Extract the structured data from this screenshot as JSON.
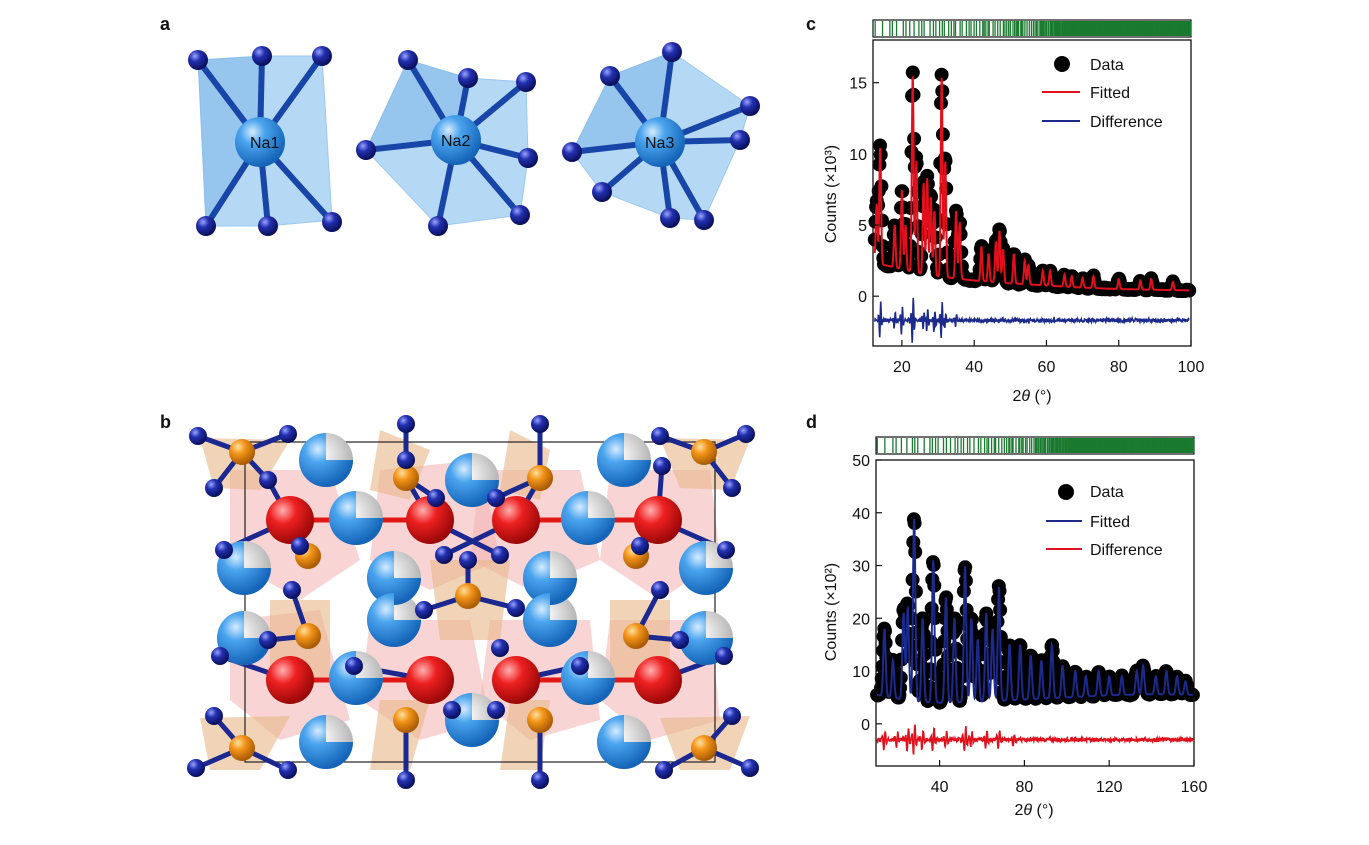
{
  "panels": {
    "a": {
      "letter": "a",
      "sites": [
        {
          "label": "Na1",
          "coordination": 8
        },
        {
          "label": "Na2",
          "coordination": 7
        },
        {
          "label": "Na3",
          "coordination": 9
        }
      ]
    },
    "b": {
      "letter": "b"
    },
    "c": {
      "letter": "c",
      "xlabel_pre": "2",
      "xlabel_theta": "θ",
      "xlabel_post": " (°)",
      "ylabel": "Counts (×10³)",
      "legend": {
        "data": "Data",
        "fitted": "Fitted",
        "difference": "Difference"
      }
    },
    "d": {
      "letter": "d",
      "xlabel_pre": "2",
      "xlabel_theta": "θ",
      "xlabel_post": " (°)",
      "ylabel": "Counts (×10²)",
      "legend": {
        "data": "Data",
        "fitted": "Fitted",
        "difference": "Difference"
      }
    }
  },
  "colors": {
    "data": "#000000",
    "red": "#e0101c",
    "navy": "#1c2a8c",
    "bragg": "#1a7a30",
    "na_atom": "#2a8ee0",
    "n_atom": "#16208e",
    "red_atom": "#e01818",
    "orange_atom": "#f08a10"
  },
  "chart_data": [
    {
      "panel": "c",
      "type": "scatter",
      "xlabel": "2θ (°)",
      "ylabel": "Counts (×10³)",
      "xlim": [
        12,
        100
      ],
      "ylim": [
        -3.5,
        18
      ],
      "xticks": [
        20,
        40,
        60,
        80,
        100
      ],
      "yticks": [
        0,
        5,
        10,
        15
      ],
      "legend_position": "top-right",
      "baseline": {
        "x": [
          12,
          15,
          20,
          25,
          30,
          40,
          50,
          60,
          70,
          80,
          90,
          100
        ],
        "y": [
          2.6,
          2.2,
          1.9,
          1.6,
          1.4,
          1.1,
          0.9,
          0.75,
          0.6,
          0.5,
          0.45,
          0.4
        ]
      },
      "peaks": {
        "x": [
          13,
          14,
          18,
          20,
          21,
          23,
          24,
          26,
          27,
          28,
          29,
          31,
          32,
          35,
          36,
          42,
          44,
          46,
          47,
          48,
          51,
          54,
          55,
          59,
          61,
          65,
          67,
          70,
          73,
          80,
          86,
          89,
          95
        ],
        "y": [
          6.5,
          10.5,
          5.0,
          7.5,
          5.0,
          15.6,
          9.5,
          8.0,
          8.3,
          7.0,
          6.0,
          15.5,
          9.5,
          6.0,
          5.2,
          3.5,
          3.0,
          3.8,
          4.6,
          3.3,
          3.0,
          2.5,
          2.2,
          1.8,
          1.8,
          1.5,
          1.4,
          1.3,
          1.4,
          1.2,
          1.1,
          1.2,
          1.0
        ]
      },
      "difference_offset": -1.7,
      "difference_spikes": {
        "x": [
          14,
          18,
          20,
          23,
          26,
          27,
          29,
          31,
          32,
          35
        ],
        "amplitude": [
          1.4,
          0.6,
          1.0,
          1.9,
          0.7,
          0.9,
          0.8,
          1.4,
          0.6,
          0.5
        ]
      },
      "series": [
        {
          "name": "Data",
          "marker": "circle"
        },
        {
          "name": "Fitted",
          "line": "red"
        },
        {
          "name": "Difference",
          "line": "navy"
        }
      ]
    },
    {
      "panel": "d",
      "type": "scatter",
      "xlabel": "2θ (°)",
      "ylabel": "Counts (×10²)",
      "xlim": [
        10,
        160
      ],
      "ylim": [
        -8,
        50
      ],
      "xticks": [
        40,
        80,
        120,
        160
      ],
      "yticks": [
        0,
        10,
        20,
        30,
        40,
        50
      ],
      "legend_position": "top-right",
      "baseline": {
        "x": [
          10,
          20,
          30,
          40,
          60,
          80,
          100,
          120,
          140,
          160
        ],
        "y": [
          5.5,
          4.8,
          4.2,
          4.0,
          4.2,
          4.6,
          5.0,
          5.4,
          5.6,
          5.5
        ]
      },
      "peaks": {
        "x": [
          14,
          18,
          23,
          25,
          28,
          32,
          37,
          43,
          47,
          52,
          55,
          58,
          62,
          65,
          68,
          73,
          78,
          83,
          88,
          93,
          98,
          104,
          109,
          115,
          120,
          126,
          133,
          136,
          142,
          147,
          152,
          156
        ],
        "y": [
          18,
          12,
          21,
          22,
          39,
          20,
          31,
          24,
          20,
          30,
          20,
          16,
          21,
          18,
          26,
          15,
          15,
          13,
          12,
          15,
          11,
          10,
          9,
          10,
          9,
          9,
          10,
          11,
          9,
          10,
          9,
          8
        ]
      },
      "difference_offset": -3,
      "difference_spikes": {
        "x": [
          14,
          20,
          25,
          28,
          32,
          37,
          43,
          52,
          55,
          62,
          68,
          75
        ],
        "amplitude": [
          2.0,
          1.5,
          2.2,
          3.0,
          2.0,
          2.4,
          1.6,
          2.6,
          1.5,
          1.6,
          1.8,
          1.2
        ]
      },
      "series": [
        {
          "name": "Data",
          "marker": "circle"
        },
        {
          "name": "Fitted",
          "line": "navy"
        },
        {
          "name": "Difference",
          "line": "red"
        }
      ]
    }
  ]
}
